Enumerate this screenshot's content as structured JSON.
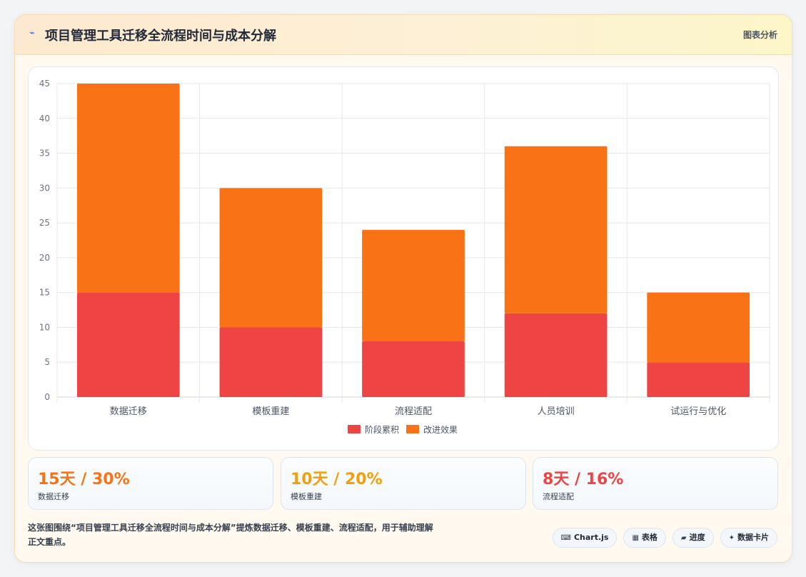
{
  "header": {
    "icon": "lightning-icon",
    "title": "项目管理工具迁移全流程时间与成本分解",
    "tag": "图表分析"
  },
  "chart_data": {
    "type": "bar",
    "stacked": true,
    "categories": [
      "数据迁移",
      "模板重建",
      "流程适配",
      "人员培训",
      "试运行与优化"
    ],
    "series": [
      {
        "name": "阶段累积",
        "values": [
          15,
          10,
          8,
          12,
          5
        ],
        "color": "#ef4444"
      },
      {
        "name": "改进效果",
        "values": [
          30,
          20,
          16,
          24,
          10
        ],
        "color": "#f97316"
      }
    ],
    "ylim": [
      0,
      45
    ],
    "yticks": [
      0,
      5,
      10,
      15,
      20,
      25,
      30,
      35,
      40,
      45
    ],
    "grid": true,
    "legend": "bottom"
  },
  "stats": [
    {
      "value": "15天 / 30%",
      "label": "数据迁移",
      "color": "#f97316"
    },
    {
      "value": "10天 / 20%",
      "label": "模板重建",
      "color": "#f59e0b"
    },
    {
      "value": "8天 / 16%",
      "label": "流程适配",
      "color": "#ef4444"
    }
  ],
  "footer": {
    "text": "这张图围绕“项目管理工具迁移全流程时间与成本分解”提炼数据迁移、模板重建、流程适配，用于辅助理解正文重点。"
  },
  "badges": [
    {
      "icon": "code-icon",
      "glyph": "⌨",
      "label": "Chart.js"
    },
    {
      "icon": "table-icon",
      "glyph": "▦",
      "label": "表格"
    },
    {
      "icon": "progress-icon",
      "glyph": "▰",
      "label": "进度"
    },
    {
      "icon": "sparkle-icon",
      "glyph": "✦",
      "label": "数据卡片"
    }
  ]
}
